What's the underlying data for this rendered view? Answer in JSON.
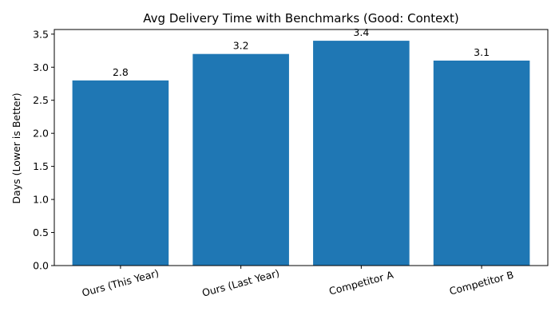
{
  "chart_data": {
    "type": "bar",
    "title": "Avg Delivery Time with Benchmarks (Good: Context)",
    "xlabel": "",
    "ylabel": "Days (Lower is Better)",
    "categories": [
      "Ours (This Year)",
      "Ours (Last Year)",
      "Competitor A",
      "Competitor B"
    ],
    "values": [
      2.8,
      3.2,
      3.4,
      3.1
    ],
    "data_labels": [
      "2.8",
      "3.2",
      "3.4",
      "3.1"
    ],
    "ylim": [
      0,
      3.57
    ],
    "yticks": [
      0.0,
      0.5,
      1.0,
      1.5,
      2.0,
      2.5,
      3.0,
      3.5
    ],
    "ytick_labels": [
      "0.0",
      "0.5",
      "1.0",
      "1.5",
      "2.0",
      "2.5",
      "3.0",
      "3.5"
    ],
    "bar_color": "#1f77b4",
    "grid": false,
    "legend": "none"
  }
}
